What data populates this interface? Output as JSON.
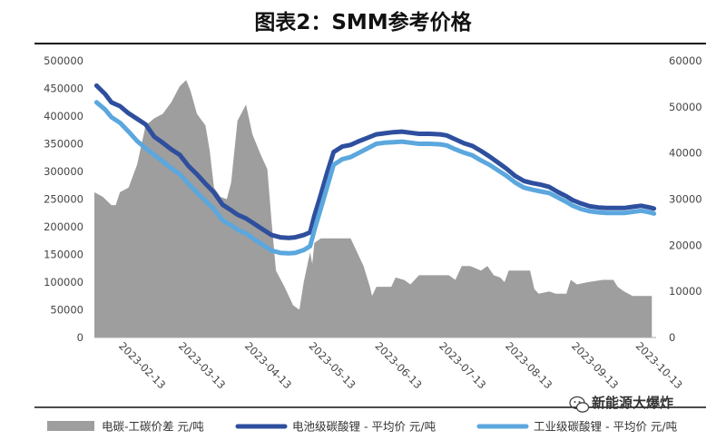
{
  "chart_data": {
    "title": "图表2：SMM参考价格",
    "x_ticks": [
      "2023-02-13",
      "2023-03-13",
      "2023-04-13",
      "2023-05-13",
      "2023-06-13",
      "2023-07-13",
      "2023-08-13",
      "2023-09-13",
      "2023-10-13"
    ],
    "x_range": [
      "2023-02-01",
      "2023-10-22"
    ],
    "y_left": {
      "min": 0,
      "max": 500000,
      "ticks": [
        "0",
        "50000",
        "100000",
        "150000",
        "200000",
        "250000",
        "300000",
        "350000",
        "400000",
        "450000",
        "500000"
      ]
    },
    "y_right": {
      "min": 0,
      "max": 60000,
      "ticks": [
        "0",
        "10000",
        "20000",
        "30000",
        "40000",
        "50000",
        "60000"
      ]
    },
    "grid": false,
    "legend_position": "bottom",
    "series": [
      {
        "name": "电碳-工碳价差 元/吨",
        "type": "area",
        "axis": "right",
        "color": "#9e9e9e",
        "points": [
          [
            "2023-02-01",
            31500
          ],
          [
            "2023-02-05",
            30500
          ],
          [
            "2023-02-09",
            28700
          ],
          [
            "2023-02-11",
            28700
          ],
          [
            "2023-02-13",
            31500
          ],
          [
            "2023-02-17",
            32500
          ],
          [
            "2023-02-21",
            37500
          ],
          [
            "2023-02-25",
            46000
          ],
          [
            "2023-03-01",
            47500
          ],
          [
            "2023-03-05",
            48500
          ],
          [
            "2023-03-09",
            51000
          ],
          [
            "2023-03-13",
            54500
          ],
          [
            "2023-03-16",
            55800
          ],
          [
            "2023-03-18",
            53500
          ],
          [
            "2023-03-21",
            48500
          ],
          [
            "2023-03-25",
            46000
          ],
          [
            "2023-03-27",
            40500
          ],
          [
            "2023-03-29",
            32500
          ],
          [
            "2023-04-01",
            30500
          ],
          [
            "2023-04-04",
            30000
          ],
          [
            "2023-04-06",
            33500
          ],
          [
            "2023-04-09",
            47000
          ],
          [
            "2023-04-13",
            50500
          ],
          [
            "2023-04-16",
            44000
          ],
          [
            "2023-04-20",
            39500
          ],
          [
            "2023-04-23",
            36500
          ],
          [
            "2023-04-25",
            25000
          ],
          [
            "2023-04-27",
            14500
          ],
          [
            "2023-05-01",
            11000
          ],
          [
            "2023-05-05",
            7000
          ],
          [
            "2023-05-08",
            6000
          ],
          [
            "2023-05-10",
            12000
          ],
          [
            "2023-05-13",
            18500
          ],
          [
            "2023-05-14",
            16000
          ],
          [
            "2023-05-15",
            20500
          ],
          [
            "2023-05-18",
            21500
          ],
          [
            "2023-05-25",
            21500
          ],
          [
            "2023-06-01",
            21500
          ],
          [
            "2023-06-04",
            18500
          ],
          [
            "2023-06-07",
            15500
          ],
          [
            "2023-06-10",
            11000
          ],
          [
            "2023-06-11",
            9000
          ],
          [
            "2023-06-13",
            11000
          ],
          [
            "2023-06-20",
            11000
          ],
          [
            "2023-06-22",
            13000
          ],
          [
            "2023-06-26",
            12500
          ],
          [
            "2023-06-29",
            11500
          ],
          [
            "2023-07-03",
            13500
          ],
          [
            "2023-07-08",
            13500
          ],
          [
            "2023-07-13",
            13500
          ],
          [
            "2023-07-17",
            13500
          ],
          [
            "2023-07-20",
            12500
          ],
          [
            "2023-07-23",
            15500
          ],
          [
            "2023-07-27",
            15500
          ],
          [
            "2023-08-01",
            14500
          ],
          [
            "2023-08-04",
            15500
          ],
          [
            "2023-08-07",
            13500
          ],
          [
            "2023-08-10",
            13000
          ],
          [
            "2023-08-12",
            12000
          ],
          [
            "2023-08-14",
            14500
          ],
          [
            "2023-08-18",
            14500
          ],
          [
            "2023-08-24",
            14500
          ],
          [
            "2023-08-26",
            10500
          ],
          [
            "2023-08-28",
            9500
          ],
          [
            "2023-09-02",
            10000
          ],
          [
            "2023-09-05",
            9500
          ],
          [
            "2023-09-10",
            9500
          ],
          [
            "2023-09-12",
            12500
          ],
          [
            "2023-09-15",
            11500
          ],
          [
            "2023-09-20",
            12000
          ],
          [
            "2023-09-27",
            12500
          ],
          [
            "2023-10-02",
            12500
          ],
          [
            "2023-10-04",
            11000
          ],
          [
            "2023-10-07",
            10000
          ],
          [
            "2023-10-11",
            9000
          ],
          [
            "2023-10-16",
            9000
          ],
          [
            "2023-10-20",
            9000
          ]
        ]
      },
      {
        "name": "电池级碳酸锂 - 平均价 元/吨",
        "type": "line",
        "axis": "left",
        "color": "#2e4f9e",
        "points": [
          [
            "2023-02-02",
            455000
          ],
          [
            "2023-02-06",
            440000
          ],
          [
            "2023-02-09",
            425000
          ],
          [
            "2023-02-13",
            418000
          ],
          [
            "2023-02-17",
            405000
          ],
          [
            "2023-02-21",
            395000
          ],
          [
            "2023-02-25",
            385000
          ],
          [
            "2023-03-01",
            363000
          ],
          [
            "2023-03-05",
            352000
          ],
          [
            "2023-03-09",
            340000
          ],
          [
            "2023-03-13",
            330000
          ],
          [
            "2023-03-17",
            310000
          ],
          [
            "2023-03-21",
            295000
          ],
          [
            "2023-03-25",
            278000
          ],
          [
            "2023-03-29",
            262000
          ],
          [
            "2023-04-02",
            240000
          ],
          [
            "2023-04-06",
            230000
          ],
          [
            "2023-04-09",
            222000
          ],
          [
            "2023-04-13",
            215000
          ],
          [
            "2023-04-17",
            205000
          ],
          [
            "2023-04-21",
            195000
          ],
          [
            "2023-04-25",
            185000
          ],
          [
            "2023-04-29",
            181000
          ],
          [
            "2023-05-03",
            180000
          ],
          [
            "2023-05-06",
            181000
          ],
          [
            "2023-05-10",
            185000
          ],
          [
            "2023-05-13",
            190000
          ],
          [
            "2023-05-15",
            220000
          ],
          [
            "2023-05-18",
            258000
          ],
          [
            "2023-05-21",
            298000
          ],
          [
            "2023-05-24",
            335000
          ],
          [
            "2023-05-28",
            345000
          ],
          [
            "2023-06-01",
            348000
          ],
          [
            "2023-06-05",
            355000
          ],
          [
            "2023-06-09",
            361000
          ],
          [
            "2023-06-13",
            367000
          ],
          [
            "2023-06-17",
            369000
          ],
          [
            "2023-06-21",
            371000
          ],
          [
            "2023-06-25",
            372000
          ],
          [
            "2023-06-29",
            370000
          ],
          [
            "2023-07-03",
            368000
          ],
          [
            "2023-07-08",
            368000
          ],
          [
            "2023-07-13",
            367000
          ],
          [
            "2023-07-16",
            365000
          ],
          [
            "2023-07-20",
            358000
          ],
          [
            "2023-07-24",
            351000
          ],
          [
            "2023-07-28",
            346000
          ],
          [
            "2023-08-01",
            337000
          ],
          [
            "2023-08-05",
            327000
          ],
          [
            "2023-08-09",
            316000
          ],
          [
            "2023-08-13",
            305000
          ],
          [
            "2023-08-17",
            292000
          ],
          [
            "2023-08-21",
            283000
          ],
          [
            "2023-08-25",
            279000
          ],
          [
            "2023-08-29",
            276000
          ],
          [
            "2023-09-02",
            272000
          ],
          [
            "2023-09-06",
            263000
          ],
          [
            "2023-09-10",
            255000
          ],
          [
            "2023-09-13",
            248000
          ],
          [
            "2023-09-17",
            242000
          ],
          [
            "2023-09-21",
            237000
          ],
          [
            "2023-09-25",
            235000
          ],
          [
            "2023-09-29",
            234000
          ],
          [
            "2023-10-03",
            234000
          ],
          [
            "2023-10-07",
            234000
          ],
          [
            "2023-10-11",
            236000
          ],
          [
            "2023-10-15",
            238000
          ],
          [
            "2023-10-19",
            235000
          ],
          [
            "2023-10-21",
            233000
          ]
        ]
      },
      {
        "name": "工业级碳酸锂 - 平均价 元/吨",
        "type": "line",
        "axis": "left",
        "color": "#5ba7de",
        "points": [
          [
            "2023-02-02",
            425000
          ],
          [
            "2023-02-06",
            412000
          ],
          [
            "2023-02-09",
            398000
          ],
          [
            "2023-02-13",
            388000
          ],
          [
            "2023-02-17",
            372000
          ],
          [
            "2023-02-21",
            355000
          ],
          [
            "2023-02-25",
            342000
          ],
          [
            "2023-03-01",
            330000
          ],
          [
            "2023-03-05",
            318000
          ],
          [
            "2023-03-09",
            306000
          ],
          [
            "2023-03-13",
            295000
          ],
          [
            "2023-03-17",
            278000
          ],
          [
            "2023-03-21",
            262000
          ],
          [
            "2023-03-25",
            247000
          ],
          [
            "2023-03-29",
            232000
          ],
          [
            "2023-04-02",
            212000
          ],
          [
            "2023-04-06",
            203000
          ],
          [
            "2023-04-09",
            195000
          ],
          [
            "2023-04-13",
            188000
          ],
          [
            "2023-04-17",
            177000
          ],
          [
            "2023-04-21",
            167000
          ],
          [
            "2023-04-25",
            157000
          ],
          [
            "2023-04-29",
            153000
          ],
          [
            "2023-05-03",
            152000
          ],
          [
            "2023-05-06",
            153000
          ],
          [
            "2023-05-10",
            158000
          ],
          [
            "2023-05-13",
            165000
          ],
          [
            "2023-05-15",
            194000
          ],
          [
            "2023-05-18",
            233000
          ],
          [
            "2023-05-21",
            272000
          ],
          [
            "2023-05-24",
            312000
          ],
          [
            "2023-05-28",
            322000
          ],
          [
            "2023-06-01",
            326000
          ],
          [
            "2023-06-05",
            334000
          ],
          [
            "2023-06-09",
            342000
          ],
          [
            "2023-06-13",
            350000
          ],
          [
            "2023-06-17",
            352000
          ],
          [
            "2023-06-21",
            353000
          ],
          [
            "2023-06-25",
            354000
          ],
          [
            "2023-06-29",
            352000
          ],
          [
            "2023-07-03",
            350000
          ],
          [
            "2023-07-08",
            350000
          ],
          [
            "2023-07-13",
            349000
          ],
          [
            "2023-07-16",
            347000
          ],
          [
            "2023-07-20",
            340000
          ],
          [
            "2023-07-24",
            334000
          ],
          [
            "2023-07-28",
            329000
          ],
          [
            "2023-08-01",
            320000
          ],
          [
            "2023-08-05",
            312000
          ],
          [
            "2023-08-09",
            302000
          ],
          [
            "2023-08-13",
            292000
          ],
          [
            "2023-08-17",
            280000
          ],
          [
            "2023-08-21",
            271000
          ],
          [
            "2023-08-25",
            267000
          ],
          [
            "2023-08-29",
            264000
          ],
          [
            "2023-09-02",
            261000
          ],
          [
            "2023-09-06",
            253000
          ],
          [
            "2023-09-10",
            245000
          ],
          [
            "2023-09-13",
            238000
          ],
          [
            "2023-09-17",
            232000
          ],
          [
            "2023-09-21",
            228000
          ],
          [
            "2023-09-25",
            226000
          ],
          [
            "2023-09-29",
            225000
          ],
          [
            "2023-10-03",
            225000
          ],
          [
            "2023-10-07",
            225000
          ],
          [
            "2023-10-11",
            227000
          ],
          [
            "2023-10-15",
            229000
          ],
          [
            "2023-10-19",
            226000
          ],
          [
            "2023-10-21",
            224000
          ]
        ]
      }
    ]
  },
  "watermark": {
    "text": "新能源大爆炸",
    "icon": "wechat-icon"
  }
}
